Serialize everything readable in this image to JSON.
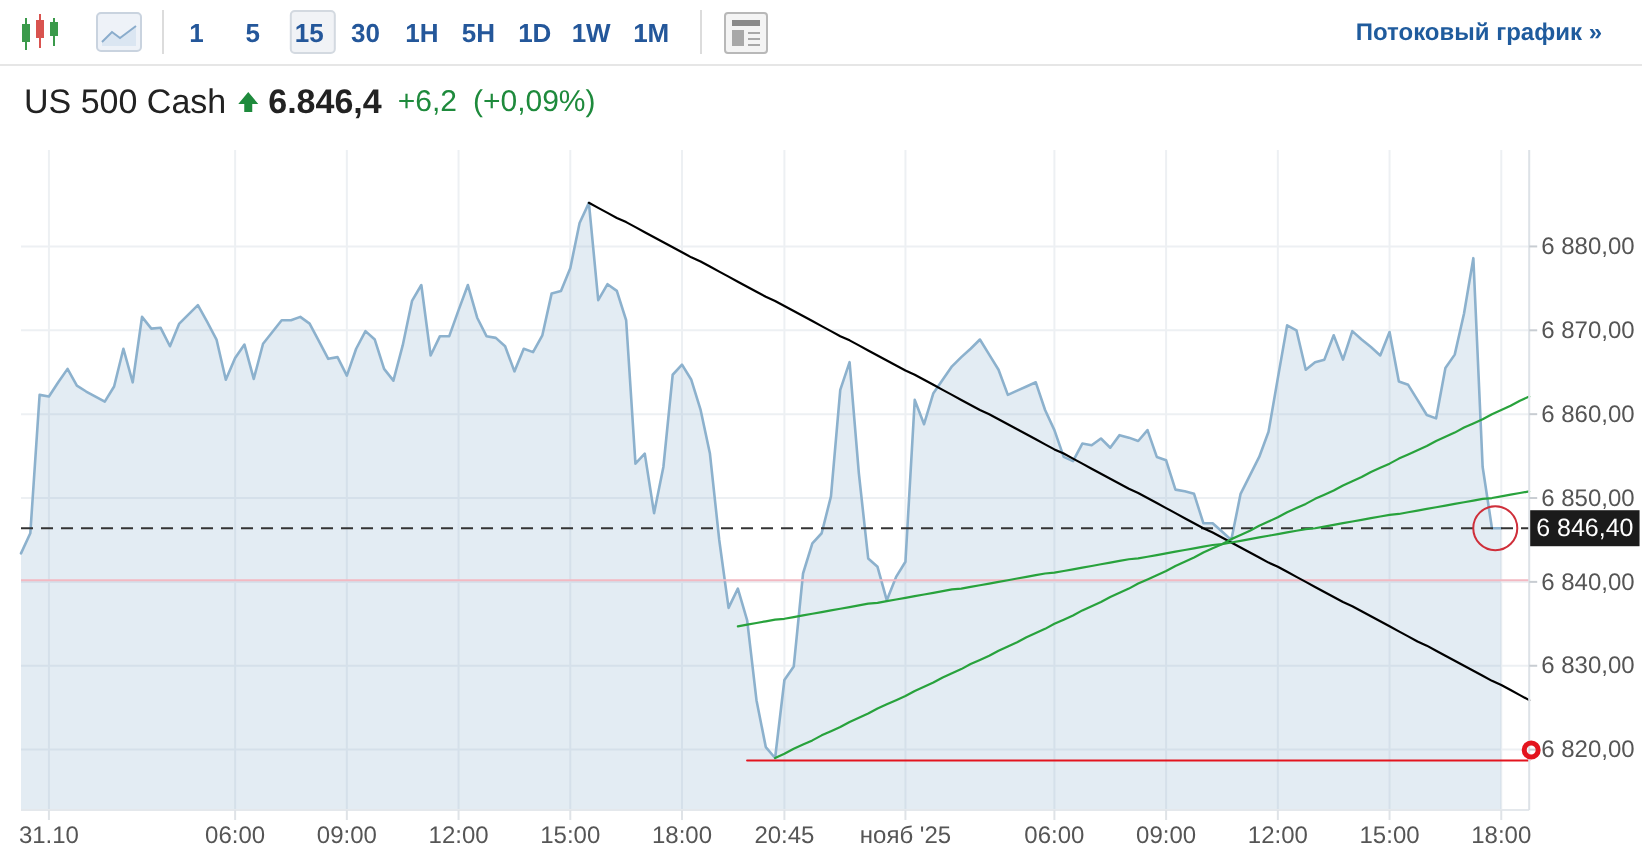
{
  "chart_data": {
    "type": "area",
    "title": "US 500 Cash",
    "annotations": [
      "1 5 15 30 1H 5H 1D 1W 1M",
      "Потоковый график »",
      "6.846,4",
      "+6,2",
      "(+0,09%)"
    ],
    "categories": [
      null,
      null,
      null,
      "31.10",
      null,
      null,
      null,
      null,
      null,
      null,
      null,
      null,
      null,
      null,
      null,
      null,
      null,
      null,
      null,
      null,
      null,
      null,
      null,
      "06:00",
      null,
      null,
      null,
      null,
      null,
      null,
      null,
      null,
      null,
      null,
      null,
      "09:00",
      null,
      null,
      null,
      null,
      null,
      null,
      null,
      null,
      null,
      null,
      null,
      "12:00",
      null,
      null,
      null,
      null,
      null,
      null,
      null,
      null,
      null,
      null,
      null,
      "15:00",
      null,
      null,
      null,
      null,
      null,
      null,
      null,
      null,
      null,
      null,
      null,
      "18:00",
      null,
      null,
      null,
      null,
      null,
      null,
      null,
      null,
      null,
      null,
      "20:45",
      null,
      null,
      null,
      null,
      null,
      null,
      null,
      null,
      null,
      null,
      null,
      null,
      "нояб '25",
      null,
      null,
      null,
      null,
      null,
      null,
      null,
      null,
      null,
      null,
      null,
      null,
      null,
      null,
      null,
      "06:00",
      null,
      null,
      null,
      null,
      null,
      null,
      null,
      null,
      null,
      null,
      null,
      "09:00",
      null,
      null,
      null,
      null,
      null,
      null,
      null,
      null,
      null,
      null,
      null,
      "12:00",
      null,
      null,
      null,
      null,
      null,
      null,
      null,
      null,
      null,
      null,
      null,
      "15:00",
      null,
      null,
      null,
      null,
      null,
      null,
      null,
      null,
      null,
      null,
      null,
      "18:00",
      null,
      null,
      null
    ],
    "ylim": [
      6812.8,
      6891.5
    ],
    "yticks": [
      {
        "value": 6820,
        "label": "6 820,00"
      },
      {
        "value": 6830,
        "label": "6 830,00"
      },
      {
        "value": 6840,
        "label": "6 840,00"
      },
      {
        "value": 6850,
        "label": "6 850,00"
      },
      {
        "value": 6860,
        "label": "6 860,00"
      },
      {
        "value": 6870,
        "label": "6 870,00"
      },
      {
        "value": 6880,
        "label": "6 880,00"
      }
    ],
    "grid": true,
    "ref_lines": [
      {
        "axis": "y",
        "value": 6840.2,
        "color": "#f3b9c2",
        "line_style": "solid"
      },
      {
        "axis": "y",
        "value": 6846.4,
        "label": "6 846,40",
        "color": "#333333",
        "line_style": "dashed"
      }
    ],
    "series": [
      {
        "color": "#8cb1cd",
        "values": [
          6843.4,
          6845.8,
          6862.3,
          6862.1,
          6863.8,
          6865.4,
          6863.4,
          6862.7,
          6862.1,
          6861.5,
          6863.3,
          6867.8,
          6863.8,
          6871.6,
          6870.2,
          6870.3,
          6868.1,
          6870.8,
          6871.9,
          6873.0,
          6871.0,
          6868.9,
          6864.1,
          6866.7,
          6868.3,
          6864.2,
          6868.4,
          6869.8,
          6871.2,
          6871.2,
          6871.6,
          6870.8,
          6868.7,
          6866.6,
          6866.8,
          6864.6,
          6867.8,
          6869.9,
          6868.9,
          6865.4,
          6864.0,
          6868.2,
          6873.5,
          6875.4,
          6867.0,
          6869.3,
          6869.3,
          6872.4,
          6875.4,
          6871.5,
          6869.3,
          6869.1,
          6868.1,
          6865.1,
          6867.8,
          6867.4,
          6869.4,
          6874.4,
          6874.7,
          6877.4,
          6882.8,
          6885.2,
          6873.6,
          6875.5,
          6874.7,
          6871.2,
          6854.1,
          6855.3,
          6848.2,
          6853.7,
          6864.7,
          6865.9,
          6864.1,
          6860.5,
          6855.3,
          6845.0,
          6836.9,
          6839.2,
          6835.4,
          6825.9,
          6820.3,
          6819.0,
          6828.3,
          6829.9,
          6841.0,
          6844.6,
          6845.8,
          6850.2,
          6862.9,
          6866.2,
          6852.9,
          6842.8,
          6841.8,
          6837.8,
          6840.6,
          6842.4,
          6861.7,
          6858.8,
          6862.5,
          6864.1,
          6865.7,
          6866.8,
          6867.8,
          6868.9,
          6867.1,
          6865.3,
          6862.3,
          6862.8,
          6863.3,
          6863.8,
          6860.5,
          6858.1,
          6854.9,
          6854.4,
          6856.5,
          6856.3,
          6857.1,
          6856.0,
          6857.5,
          6857.2,
          6856.8,
          6858.1,
          6854.9,
          6854.5,
          6851.0,
          6850.8,
          6850.5,
          6847.0,
          6847.0,
          6846.0,
          6845.0,
          6850.5,
          6852.7,
          6854.9,
          6857.9,
          6864.3,
          6870.6,
          6870.0,
          6865.3,
          6866.2,
          6866.5,
          6869.4,
          6866.5,
          6869.9,
          6868.9,
          6868.0,
          6867.0,
          6869.8,
          6863.9,
          6863.5,
          6861.7,
          6859.9,
          6859.5,
          6865.5,
          6867.1,
          6872.0,
          6878.6,
          6853.7,
          6846.4,
          6846.4,
          null,
          null,
          null
        ]
      },
      {
        "type": "line",
        "color": "#000000",
        "values": [
          null,
          null,
          null,
          null,
          null,
          null,
          null,
          null,
          null,
          null,
          null,
          null,
          null,
          null,
          null,
          null,
          null,
          null,
          null,
          null,
          null,
          null,
          null,
          null,
          null,
          null,
          null,
          null,
          null,
          null,
          null,
          null,
          null,
          null,
          null,
          null,
          null,
          null,
          null,
          null,
          null,
          null,
          null,
          null,
          null,
          null,
          null,
          null,
          null,
          null,
          null,
          null,
          null,
          null,
          null,
          null,
          null,
          null,
          null,
          null,
          null,
          6885.2,
          6884.6,
          6884.0,
          6883.4,
          6882.9,
          6882.3,
          6881.7,
          6881.1,
          6880.5,
          6879.9,
          6879.3,
          6878.7,
          6878.2,
          6877.6,
          6877.0,
          6876.4,
          6875.8,
          6875.2,
          6874.6,
          6874.0,
          6873.5,
          6872.9,
          6872.3,
          6871.7,
          6871.1,
          6870.5,
          6869.9,
          6869.3,
          6868.8,
          6868.2,
          6867.6,
          6867.0,
          6866.4,
          6865.8,
          6865.2,
          6864.7,
          6864.1,
          6863.5,
          6862.9,
          6862.3,
          6861.7,
          6861.1,
          6860.5,
          6860.0,
          6859.4,
          6858.8,
          6858.2,
          6857.6,
          6857.0,
          6856.4,
          6855.8,
          6855.3,
          6854.7,
          6854.1,
          6853.5,
          6852.9,
          6852.3,
          6851.7,
          6851.1,
          6850.6,
          6850.0,
          6849.4,
          6848.8,
          6848.2,
          6847.6,
          6847.0,
          6846.4,
          6845.9,
          6845.3,
          6844.7,
          6844.1,
          6843.5,
          6842.9,
          6842.3,
          6841.8,
          6841.2,
          6840.6,
          6840.0,
          6839.4,
          6838.8,
          6838.2,
          6837.6,
          6837.1,
          6836.5,
          6835.9,
          6835.3,
          6834.7,
          6834.1,
          6833.5,
          6832.9,
          6832.4,
          6831.8,
          6831.2,
          6830.6,
          6830.0,
          6829.4,
          6828.8,
          6828.2,
          6827.7,
          6827.1,
          6826.5,
          6825.9
        ]
      },
      {
        "type": "line",
        "color": "#28a23c",
        "values": [
          null,
          null,
          null,
          null,
          null,
          null,
          null,
          null,
          null,
          null,
          null,
          null,
          null,
          null,
          null,
          null,
          null,
          null,
          null,
          null,
          null,
          null,
          null,
          null,
          null,
          null,
          null,
          null,
          null,
          null,
          null,
          null,
          null,
          null,
          null,
          null,
          null,
          null,
          null,
          null,
          null,
          null,
          null,
          null,
          null,
          null,
          null,
          null,
          null,
          null,
          null,
          null,
          null,
          null,
          null,
          null,
          null,
          null,
          null,
          null,
          null,
          null,
          null,
          null,
          null,
          null,
          null,
          null,
          null,
          null,
          null,
          null,
          null,
          null,
          null,
          null,
          null,
          6834.7,
          6834.9,
          6835.1,
          6835.3,
          6835.5,
          6835.6,
          6835.8,
          6836.0,
          6836.2,
          6836.4,
          6836.6,
          6836.8,
          6837.0,
          6837.2,
          6837.4,
          6837.5,
          6837.7,
          6837.9,
          6838.1,
          6838.3,
          6838.5,
          6838.7,
          6838.9,
          6839.1,
          6839.2,
          6839.4,
          6839.6,
          6839.8,
          6840.0,
          6840.2,
          6840.4,
          6840.6,
          6840.8,
          6841.0,
          6841.1,
          6841.3,
          6841.5,
          6841.7,
          6841.9,
          6842.1,
          6842.3,
          6842.5,
          6842.7,
          6842.8,
          6843.0,
          6843.2,
          6843.4,
          6843.6,
          6843.8,
          6844.0,
          6844.2,
          6844.4,
          6844.5,
          6844.7,
          6844.9,
          6845.1,
          6845.3,
          6845.5,
          6845.7,
          6845.9,
          6846.1,
          6846.3,
          6846.4,
          6846.6,
          6846.8,
          6847.0,
          6847.2,
          6847.4,
          6847.6,
          6847.8,
          6848.0,
          6848.1,
          6848.3,
          6848.5,
          6848.7,
          6848.9,
          6849.1,
          6849.3,
          6849.5,
          6849.7,
          6849.9,
          6850.0,
          6850.2,
          6850.4,
          6850.6,
          6850.8
        ]
      },
      {
        "type": "line",
        "color": "#28a23c",
        "values": [
          null,
          null,
          null,
          null,
          null,
          null,
          null,
          null,
          null,
          null,
          null,
          null,
          null,
          null,
          null,
          null,
          null,
          null,
          null,
          null,
          null,
          null,
          null,
          null,
          null,
          null,
          null,
          null,
          null,
          null,
          null,
          null,
          null,
          null,
          null,
          null,
          null,
          null,
          null,
          null,
          null,
          null,
          null,
          null,
          null,
          null,
          null,
          null,
          null,
          null,
          null,
          null,
          null,
          null,
          null,
          null,
          null,
          null,
          null,
          null,
          null,
          null,
          null,
          null,
          null,
          null,
          null,
          null,
          null,
          null,
          null,
          null,
          null,
          null,
          null,
          null,
          null,
          null,
          null,
          null,
          null,
          6819.0,
          6819.5,
          6820.1,
          6820.6,
          6821.1,
          6821.7,
          6822.2,
          6822.7,
          6823.3,
          6823.8,
          6824.3,
          6824.9,
          6825.4,
          6825.9,
          6826.4,
          6827.0,
          6827.5,
          6828.0,
          6828.6,
          6829.1,
          6829.6,
          6830.2,
          6830.7,
          6831.2,
          6831.8,
          6832.3,
          6832.8,
          6833.4,
          6833.9,
          6834.4,
          6835.0,
          6835.5,
          6836.0,
          6836.6,
          6837.1,
          6837.6,
          6838.2,
          6838.7,
          6839.2,
          6839.8,
          6840.3,
          6840.8,
          6841.3,
          6841.9,
          6842.4,
          6842.9,
          6843.5,
          6844.0,
          6844.5,
          6845.1,
          6845.6,
          6846.1,
          6846.7,
          6847.2,
          6847.7,
          6848.3,
          6848.8,
          6849.3,
          6849.9,
          6850.4,
          6850.9,
          6851.5,
          6852.0,
          6852.5,
          6853.1,
          6853.6,
          6854.1,
          6854.7,
          6855.2,
          6855.7,
          6856.2,
          6856.8,
          6857.3,
          6857.8,
          6858.4,
          6858.9,
          6859.4,
          6860.0,
          6860.5,
          6861.0,
          6861.6,
          6862.1
        ]
      },
      {
        "type": "line",
        "color": "#e3141e",
        "values": [
          null,
          null,
          null,
          null,
          null,
          null,
          null,
          null,
          null,
          null,
          null,
          null,
          null,
          null,
          null,
          null,
          null,
          null,
          null,
          null,
          null,
          null,
          null,
          null,
          null,
          null,
          null,
          null,
          null,
          null,
          null,
          null,
          null,
          null,
          null,
          null,
          null,
          null,
          null,
          null,
          null,
          null,
          null,
          null,
          null,
          null,
          null,
          null,
          null,
          null,
          null,
          null,
          null,
          null,
          null,
          null,
          null,
          null,
          null,
          null,
          null,
          null,
          null,
          null,
          null,
          null,
          null,
          null,
          null,
          null,
          null,
          null,
          null,
          null,
          null,
          null,
          null,
          null,
          6818.7,
          6818.7,
          6818.7,
          6818.7,
          6818.7,
          6818.7,
          6818.7,
          6818.7,
          6818.7,
          6818.7,
          6818.7,
          6818.7,
          6818.7,
          6818.7,
          6818.7,
          6818.7,
          6818.7,
          6818.7,
          6818.7,
          6818.7,
          6818.7,
          6818.7,
          6818.7,
          6818.7,
          6818.7,
          6818.7,
          6818.7,
          6818.7,
          6818.7,
          6818.7,
          6818.7,
          6818.7,
          6818.7,
          6818.7,
          6818.7,
          6818.7,
          6818.7,
          6818.7,
          6818.7,
          6818.7,
          6818.7,
          6818.7,
          6818.7,
          6818.7,
          6818.7,
          6818.7,
          6818.7,
          6818.7,
          6818.7,
          6818.7,
          6818.7,
          6818.7,
          6818.7,
          6818.7,
          6818.7,
          6818.7,
          6818.7,
          6818.7,
          6818.7,
          6818.7,
          6818.7,
          6818.7,
          6818.7,
          6818.7,
          6818.7,
          6818.7,
          6818.7,
          6818.7,
          6818.7,
          6818.7,
          6818.7,
          6818.7,
          6818.7,
          6818.7,
          6818.7,
          6818.7,
          6818.7,
          6818.7,
          6818.7,
          6818.7,
          6818.7,
          6818.7,
          6818.7,
          6818.7,
          6818.7
        ]
      }
    ]
  }
}
